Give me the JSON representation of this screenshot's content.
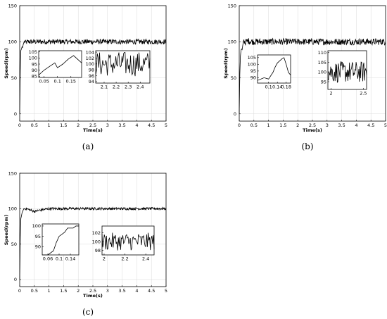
{
  "chart_data": [
    {
      "caption": "(a)",
      "type": "line",
      "xlabel": "Time(s)",
      "ylabel": "Speed(rpm)",
      "xlim": [
        0,
        5
      ],
      "ylim": [
        -10,
        150
      ],
      "xticks": [
        "0",
        "0.5",
        "1",
        "1.5",
        "2",
        "2.5",
        "3",
        "3.5",
        "4",
        "4.5",
        "5"
      ],
      "yticks": [
        "0",
        "50",
        "100",
        "150"
      ],
      "grid": true,
      "series": [
        {
          "x": [
            0,
            0.02,
            0.04,
            0.06,
            0.08,
            0.1,
            0.12,
            0.15,
            0.2,
            0.3,
            0.5,
            1,
            2,
            3,
            4,
            5
          ],
          "y": [
            0,
            60,
            88,
            90,
            93,
            92,
            96,
            100,
            99,
            100,
            100,
            100,
            100,
            100,
            100,
            100
          ]
        }
      ],
      "insets": [
        {
          "xlim": [
            0.03,
            0.19
          ],
          "ylim": [
            84,
            106
          ],
          "xticks": [
            "0.05",
            "0.1",
            "0.15"
          ],
          "yticks": [
            "85",
            "90",
            "95",
            "100",
            "105"
          ],
          "series": [
            {
              "x": [
                0.03,
                0.05,
                0.07,
                0.09,
                0.1,
                0.12,
                0.14,
                0.16,
                0.18,
                0.19
              ],
              "y": [
                86,
                90,
                93,
                96,
                92,
                95,
                99,
                102,
                98,
                96
              ]
            }
          ]
        },
        {
          "xlim": [
            2.03,
            2.48
          ],
          "ylim": [
            93.5,
            104.5
          ],
          "xticks": [
            "2.1",
            "2.2",
            "2.3",
            "2.4"
          ],
          "yticks": [
            "94",
            "96",
            "98",
            "100",
            "102",
            "104"
          ],
          "series": [
            {
              "x": [
                2.03,
                2.48
              ],
              "y": [
                100,
                100
              ]
            }
          ]
        }
      ]
    },
    {
      "caption": "(b)",
      "type": "line",
      "xlabel": "Time(s)",
      "ylabel": "Speed(rpm)",
      "xlim": [
        0,
        5
      ],
      "ylim": [
        -10,
        150
      ],
      "xticks": [
        "0",
        "0.5",
        "1",
        "1.5",
        "2",
        "2.5",
        "3",
        "3.5",
        "4",
        "4.5",
        "5"
      ],
      "yticks": [
        "0",
        "50",
        "100",
        "150"
      ],
      "grid": true,
      "series": [
        {
          "x": [
            0,
            0.02,
            0.04,
            0.06,
            0.08,
            0.1,
            0.12,
            0.14,
            0.16,
            0.18,
            0.2,
            0.3,
            0.5,
            1,
            2,
            3,
            4,
            5
          ],
          "y": [
            0,
            55,
            80,
            88,
            90,
            89,
            95,
            100,
            103,
            100,
            99,
            101,
            100,
            100,
            100,
            100,
            100,
            100
          ]
        }
      ],
      "insets": [
        {
          "xlim": [
            0.05,
            0.2
          ],
          "ylim": [
            86,
            107
          ],
          "xticks": [
            "0.1",
            "0.14",
            "0.18"
          ],
          "yticks": [
            "90",
            "95",
            "100",
            "105"
          ],
          "series": [
            {
              "x": [
                0.05,
                0.08,
                0.1,
                0.12,
                0.13,
                0.14,
                0.16,
                0.17,
                0.18,
                0.19,
                0.2
              ],
              "y": [
                88,
                90,
                89,
                94,
                98,
                101,
                104,
                105,
                100,
                94,
                92
              ]
            }
          ]
        },
        {
          "xlim": [
            1.95,
            2.55
          ],
          "ylim": [
            91,
            111
          ],
          "xticks": [
            "2",
            "2.5"
          ],
          "yticks": [
            "95",
            "100",
            "105",
            "110"
          ],
          "series": [
            {
              "x": [
                1.95,
                2.55
              ],
              "y": [
                100,
                100
              ]
            }
          ]
        }
      ]
    },
    {
      "caption": "(c)",
      "type": "line",
      "xlabel": "Time(s)",
      "ylabel": "Speed(rpm)",
      "xlim": [
        0,
        5
      ],
      "ylim": [
        -10,
        150
      ],
      "xticks": [
        "0",
        "0.5",
        "1",
        "1.5",
        "2",
        "2.5",
        "3",
        "3.5",
        "4",
        "4.5",
        "5"
      ],
      "yticks": [
        "0",
        "50",
        "100",
        "150"
      ],
      "grid": true,
      "series": [
        {
          "x": [
            0,
            0.02,
            0.04,
            0.06,
            0.08,
            0.1,
            0.12,
            0.14,
            0.2,
            0.3,
            0.5,
            0.7,
            1,
            2,
            3,
            4,
            5
          ],
          "y": [
            0,
            60,
            86,
            90,
            94,
            96,
            98,
            100,
            100,
            99,
            96,
            98,
            100,
            100,
            100,
            100,
            100
          ]
        }
      ],
      "insets": [
        {
          "xlim": [
            0.04,
            0.17
          ],
          "ylim": [
            86,
            101
          ],
          "xticks": [
            "0.06",
            "0.1",
            "0.14"
          ],
          "yticks": [
            "90",
            "95",
            "100"
          ],
          "series": [
            {
              "x": [
                0.04,
                0.06,
                0.08,
                0.09,
                0.1,
                0.11,
                0.12,
                0.13,
                0.14,
                0.15,
                0.16,
                0.17
              ],
              "y": [
                82,
                84,
                88,
                92,
                95,
                96,
                97,
                99,
                99,
                99,
                100,
                100
              ]
            }
          ]
        },
        {
          "xlim": [
            1.98,
            2.48
          ],
          "ylim": [
            97,
            103.5
          ],
          "xticks": [
            "2",
            "2.2",
            "2.4"
          ],
          "yticks": [
            "98",
            "100",
            "102"
          ],
          "series": [
            {
              "x": [
                1.98,
                2.48
              ],
              "y": [
                100,
                100
              ]
            }
          ]
        }
      ]
    }
  ]
}
